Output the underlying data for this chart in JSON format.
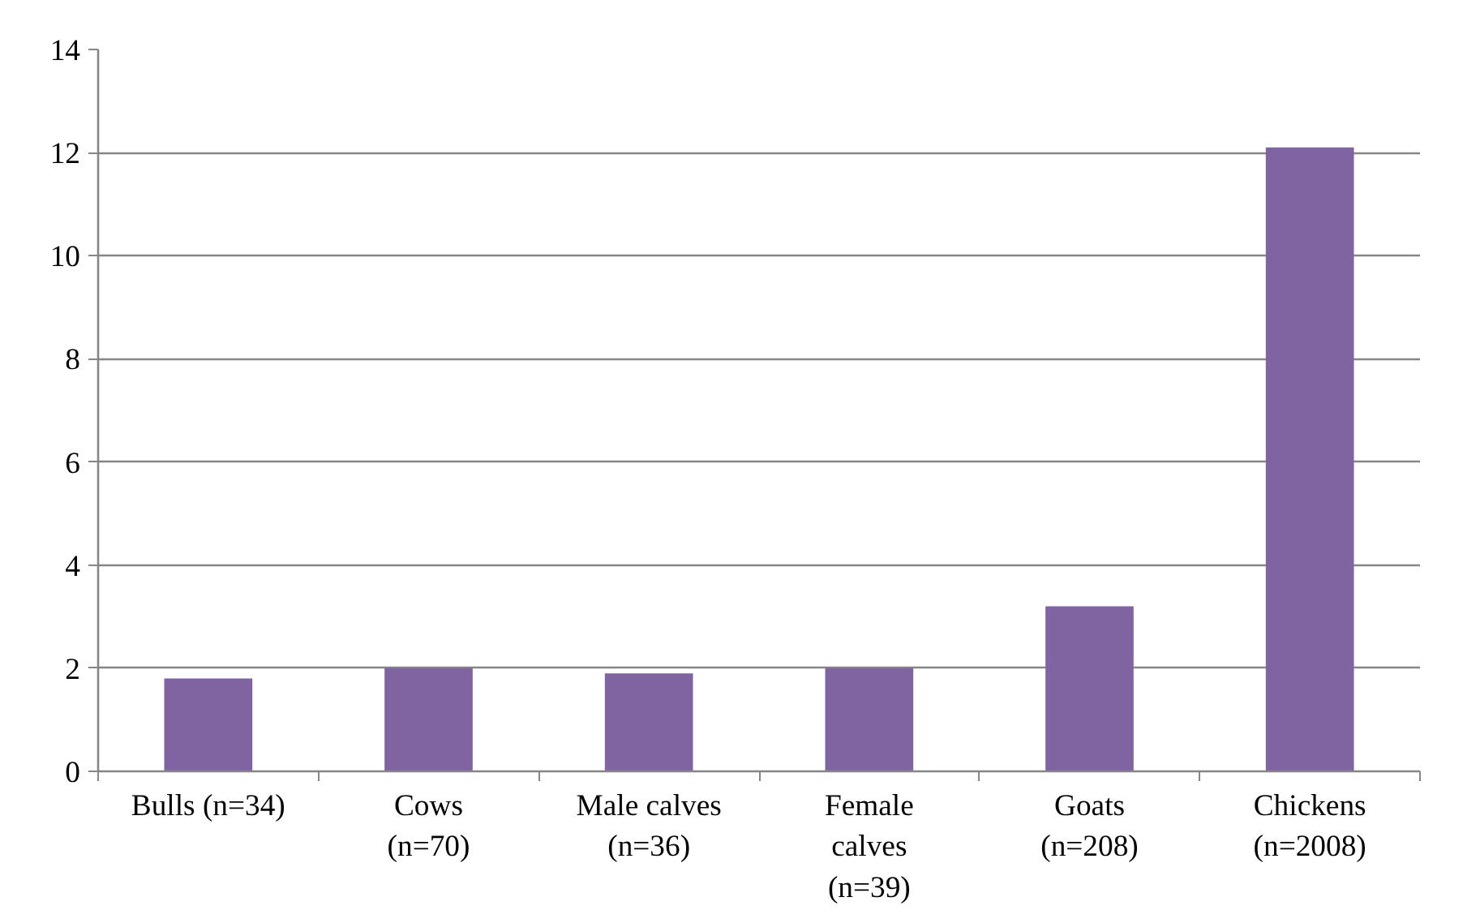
{
  "chart_data": {
    "type": "bar",
    "categories": [
      "Bulls (n=34)",
      "Cows\n(n=70)",
      "Male calves\n(n=36)",
      "Female\ncalves\n(n=39)",
      "Goats\n(n=208)",
      "Chickens\n(n=2008)"
    ],
    "values": [
      1.8,
      2.0,
      1.9,
      2.0,
      3.2,
      12.1
    ],
    "color": "#8064a2",
    "ylim": [
      0,
      14
    ],
    "yticks": [
      0,
      2,
      4,
      6,
      8,
      10,
      12,
      14
    ],
    "grid": "y"
  }
}
